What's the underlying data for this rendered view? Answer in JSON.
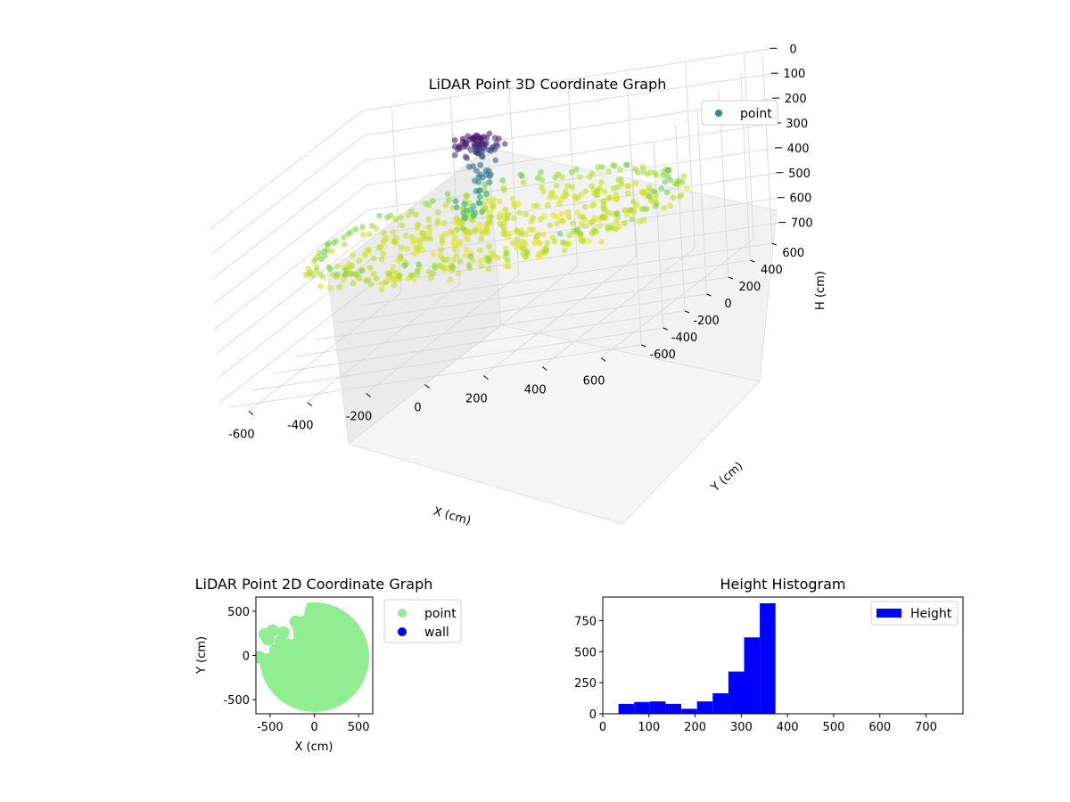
{
  "figure": {
    "background": "#ffffff"
  },
  "chart_data": [
    {
      "id": "lidar-3d",
      "type": "scatter",
      "title": "LiDAR Point 3D Coordinate Graph",
      "xlabel": "X (cm)",
      "ylabel": "Y (cm)",
      "zlabel": "H (cm)",
      "xlim": [
        -700,
        700
      ],
      "ylim": [
        -700,
        700
      ],
      "zlim": [
        750,
        0
      ],
      "z_inverted": true,
      "xticks": [
        -600,
        -400,
        -200,
        0,
        200,
        400,
        600
      ],
      "yticks": [
        -600,
        -400,
        -200,
        0,
        200,
        400,
        600
      ],
      "zticks": [
        0,
        100,
        200,
        300,
        400,
        500,
        600,
        700
      ],
      "grid": true,
      "colormap": "viridis",
      "legend": {
        "placement": "upper-right",
        "entries": [
          {
            "label": "point",
            "color": "#21918c"
          }
        ]
      },
      "series": [
        {
          "name": "point",
          "description_of_distribution": "ring of wall points at radius ~600 cm with heights 330-380 cm; dense bowl interior at ~370 cm; dark cluster near (-100, 150) at heights 20-80 cm",
          "ring": {
            "radius": 600,
            "height_min": 330,
            "height_max": 385
          },
          "cluster": {
            "x": -100,
            "y": 150,
            "height_min": 20,
            "height_max": 90
          }
        }
      ]
    },
    {
      "id": "lidar-2d",
      "type": "scatter",
      "title": "LiDAR Point 2D Coordinate Graph",
      "xlabel": "X (cm)",
      "ylabel": "Y (cm)",
      "xlim": [
        -660,
        660
      ],
      "ylim": [
        -660,
        660
      ],
      "xticks": [
        -500,
        0,
        500
      ],
      "yticks": [
        -500,
        0,
        500
      ],
      "legend": {
        "placement": "outside-right",
        "entries": [
          {
            "label": "point",
            "color": "#90ee90"
          },
          {
            "label": "wall",
            "color": "#0000ff"
          }
        ]
      },
      "series": [
        {
          "name": "point",
          "color": "#90ee90",
          "shape": "filled disc radius 620 centered at (0, 0) with gaps in the upper-left quadrant"
        },
        {
          "name": "wall",
          "color": "#0000ff",
          "count": 0
        }
      ]
    },
    {
      "id": "height-histogram",
      "type": "bar",
      "title": "Height Histogram",
      "xlabel": "",
      "ylabel": "",
      "xlim": [
        0,
        780
      ],
      "ylim": [
        0,
        940
      ],
      "xticks": [
        0,
        100,
        200,
        300,
        400,
        500,
        600,
        700
      ],
      "yticks": [
        0,
        250,
        500,
        750
      ],
      "color": "#0000ff",
      "legend": {
        "placement": "upper-right",
        "entries": [
          {
            "label": "Height",
            "color": "#0000ff"
          }
        ]
      },
      "bins": [
        {
          "start": 34,
          "end": 68,
          "count": 80
        },
        {
          "start": 68,
          "end": 102,
          "count": 95
        },
        {
          "start": 102,
          "end": 136,
          "count": 100
        },
        {
          "start": 136,
          "end": 170,
          "count": 80
        },
        {
          "start": 170,
          "end": 204,
          "count": 40
        },
        {
          "start": 204,
          "end": 238,
          "count": 100
        },
        {
          "start": 238,
          "end": 272,
          "count": 165
        },
        {
          "start": 272,
          "end": 306,
          "count": 340
        },
        {
          "start": 306,
          "end": 340,
          "count": 615
        },
        {
          "start": 340,
          "end": 374,
          "count": 890
        }
      ]
    }
  ]
}
